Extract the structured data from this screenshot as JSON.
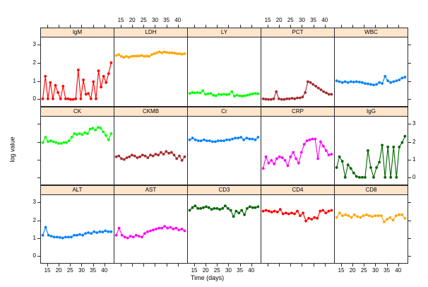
{
  "figure": {
    "xlabel": "Time (days)",
    "ylabel": "log value"
  },
  "chart_data": {
    "type": "line",
    "title": "",
    "xlabel": "Time (days)",
    "ylabel": "log value",
    "layout": "5 columns x 3 rows trellis, one series per panel",
    "grid": false,
    "legend": "none (panel strips label each series)",
    "x_ticks": [
      15,
      20,
      25,
      30,
      35,
      40
    ],
    "y_ticks": [
      0,
      1,
      2,
      3
    ],
    "xlim": [
      12.2,
      43.8
    ],
    "ylim": [
      -0.35,
      3.45
    ],
    "strip_fill": "#FFE5CC",
    "axis_color": "#000000",
    "panels": [
      {
        "title": "IgM",
        "color": "#FF0000",
        "x_start": 13,
        "x_end": 43,
        "y": [
          0.05,
          1.3,
          0.05,
          0.95,
          0.05,
          0.8,
          0.4,
          0.05,
          0.75,
          0.05,
          0.05,
          0.02,
          0.02,
          0.05,
          1.65,
          0.05,
          1.1,
          0.3,
          0.35,
          0.05,
          1.0,
          0.05,
          1.6,
          0.7,
          1.3,
          0.95,
          1.45,
          2.05
        ]
      },
      {
        "title": "LDH",
        "color": "#FFA500",
        "x_start": 13,
        "x_end": 43,
        "y": [
          2.45,
          2.5,
          2.4,
          2.35,
          2.4,
          2.35,
          2.4,
          2.42,
          2.42,
          2.42,
          2.45,
          2.4,
          2.42,
          2.4,
          2.5,
          2.55,
          2.6,
          2.65,
          2.6,
          2.65,
          2.62,
          2.6,
          2.6,
          2.58,
          2.55,
          2.55,
          2.52,
          2.55
        ]
      },
      {
        "title": "LY",
        "color": "#00FF00",
        "x_start": 13,
        "x_end": 43,
        "y": [
          0.35,
          0.4,
          0.38,
          0.4,
          0.38,
          0.5,
          0.3,
          0.33,
          0.35,
          0.25,
          0.22,
          0.3,
          0.28,
          0.3,
          0.28,
          0.3,
          0.45,
          0.2,
          0.25,
          0.22,
          0.2,
          0.22,
          0.25,
          0.3,
          0.32,
          0.35,
          0.33
        ]
      },
      {
        "title": "PCT",
        "color": "#A52A2A",
        "x_start": 13,
        "x_end": 43,
        "y": [
          0.05,
          0.03,
          0.02,
          0.02,
          0.05,
          0.45,
          0.05,
          0.02,
          0.02,
          0.05,
          0.05,
          0.08,
          0.05,
          0.1,
          0.1,
          0.15,
          0.4,
          1.0,
          0.95,
          0.85,
          0.75,
          0.65,
          0.55,
          0.45,
          0.38,
          0.3,
          0.3
        ]
      },
      {
        "title": "WBC",
        "color": "#0080FF",
        "x_start": 13,
        "x_end": 43,
        "y": [
          1.05,
          1.0,
          0.95,
          1.0,
          0.95,
          1.0,
          0.98,
          1.0,
          0.98,
          0.95,
          0.9,
          0.88,
          0.85,
          0.82,
          0.85,
          0.95,
          0.9,
          1.3,
          1.05,
          0.95,
          1.0,
          1.05,
          1.1,
          1.2,
          1.25
        ]
      },
      {
        "title": "CK",
        "color": "#00FF00",
        "x_start": 13,
        "x_end": 43,
        "y": [
          2.0,
          2.3,
          2.05,
          2.1,
          2.05,
          2.0,
          1.95,
          1.95,
          2.0,
          2.0,
          2.1,
          2.3,
          2.5,
          2.45,
          2.5,
          2.45,
          2.55,
          2.5,
          2.75,
          2.8,
          2.7,
          2.85,
          2.8,
          2.6,
          2.4,
          2.15,
          2.5
        ]
      },
      {
        "title": "CKMB",
        "color": "#A52A2A",
        "x_start": 13,
        "x_end": 43,
        "y": [
          1.2,
          1.25,
          1.1,
          1.05,
          1.15,
          1.2,
          1.3,
          1.25,
          1.15,
          1.2,
          1.3,
          1.25,
          1.15,
          1.3,
          1.25,
          1.35,
          1.3,
          1.45,
          1.35,
          1.5,
          1.4,
          1.45,
          1.3,
          1.1,
          1.25,
          1.0,
          1.2
        ]
      },
      {
        "title": "Cr",
        "color": "#0080FF",
        "x_start": 13,
        "x_end": 43,
        "y": [
          2.15,
          2.25,
          2.15,
          2.1,
          2.1,
          2.15,
          2.1,
          2.1,
          2.05,
          2.05,
          2.1,
          2.1,
          2.1,
          2.15,
          2.15,
          2.2,
          2.25,
          2.25,
          2.3,
          2.15,
          2.25,
          2.2,
          2.2,
          2.15,
          2.3
        ]
      },
      {
        "title": "CRP",
        "color": "#FF00FF",
        "x_start": 13,
        "x_end": 43,
        "y": [
          0.55,
          1.2,
          0.85,
          1.0,
          0.8,
          1.1,
          1.2,
          1.15,
          1.0,
          0.7,
          1.2,
          1.45,
          1.1,
          0.85,
          1.45,
          1.9,
          2.1,
          2.15,
          2.2,
          2.2,
          1.1,
          2.05,
          1.8,
          1.55,
          1.3,
          1.35
        ]
      },
      {
        "title": "IgG",
        "color": "#006400",
        "x_start": 13,
        "x_end": 43,
        "y": [
          0.6,
          1.2,
          0.95,
          0.05,
          0.75,
          0.55,
          0.3,
          0.1,
          0.05,
          0.05,
          0.05,
          1.55,
          0.6,
          0.05,
          0.6,
          0.9,
          1.85,
          0.05,
          1.75,
          0.05,
          1.75,
          0.05,
          1.75,
          2.0,
          2.35
        ]
      },
      {
        "title": "ALT",
        "color": "#0080FF",
        "x_start": 13,
        "x_end": 43,
        "y": [
          1.2,
          1.65,
          1.2,
          1.15,
          1.1,
          1.1,
          1.08,
          1.05,
          1.1,
          1.1,
          1.1,
          1.2,
          1.2,
          1.25,
          1.2,
          1.3,
          1.35,
          1.3,
          1.4,
          1.35,
          1.4,
          1.38,
          1.45,
          1.4,
          1.4
        ]
      },
      {
        "title": "AST",
        "color": "#FF00FF",
        "x_start": 13,
        "x_end": 43,
        "y": [
          1.2,
          1.6,
          1.2,
          1.1,
          1.05,
          1.15,
          1.1,
          1.2,
          1.15,
          1.1,
          1.3,
          1.4,
          1.45,
          1.5,
          1.55,
          1.6,
          1.6,
          1.7,
          1.6,
          1.65,
          1.55,
          1.6,
          1.5,
          1.55,
          1.45
        ]
      },
      {
        "title": "CD3",
        "color": "#006400",
        "x_start": 13,
        "x_end": 43,
        "y": [
          2.6,
          2.75,
          2.85,
          2.7,
          2.7,
          2.75,
          2.8,
          2.75,
          2.65,
          2.7,
          2.7,
          2.65,
          2.7,
          2.85,
          2.7,
          2.6,
          2.25,
          2.55,
          2.45,
          2.6,
          2.35,
          2.7,
          2.8,
          2.75,
          2.75,
          2.8
        ]
      },
      {
        "title": "CD4",
        "color": "#FF0000",
        "x_start": 13,
        "x_end": 43,
        "y": [
          2.55,
          2.6,
          2.55,
          2.5,
          2.55,
          2.5,
          2.65,
          2.4,
          2.45,
          2.4,
          2.45,
          2.4,
          2.55,
          2.3,
          2.45,
          2.0,
          2.15,
          2.1,
          2.2,
          2.15,
          2.55,
          2.6,
          2.45,
          2.55,
          2.6
        ]
      },
      {
        "title": "CD8",
        "color": "#FFA500",
        "x_start": 13,
        "x_end": 43,
        "y": [
          2.2,
          2.45,
          2.3,
          2.35,
          2.3,
          2.2,
          2.35,
          2.25,
          2.2,
          2.3,
          2.35,
          2.3,
          2.25,
          2.3,
          2.3,
          2.3,
          1.95,
          2.1,
          2.2,
          2.05,
          2.3,
          2.35,
          2.35,
          2.15
        ]
      }
    ]
  }
}
